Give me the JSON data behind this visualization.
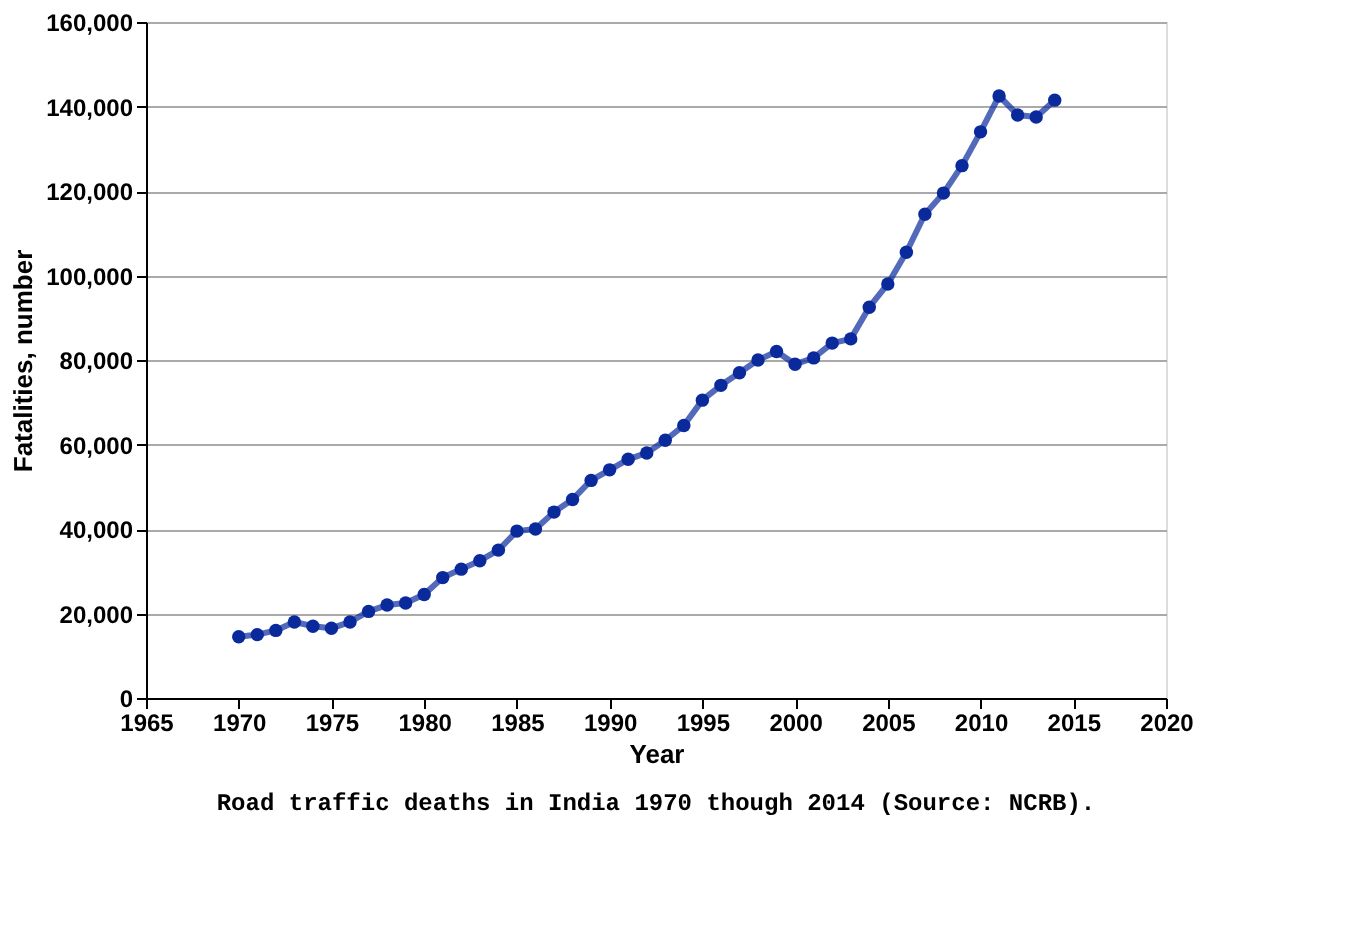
{
  "chart_data": {
    "type": "line",
    "xlabel": "Year",
    "ylabel": "Fatalities, number",
    "annotations": [
      "Road traffic deaths in India 1970 though 2014 (Source: NCRB)."
    ],
    "x": [
      1970,
      1971,
      1972,
      1973,
      1974,
      1975,
      1976,
      1977,
      1978,
      1979,
      1980,
      1981,
      1982,
      1983,
      1984,
      1985,
      1986,
      1987,
      1988,
      1989,
      1990,
      1991,
      1992,
      1993,
      1994,
      1995,
      1996,
      1997,
      1998,
      1999,
      2000,
      2001,
      2002,
      2003,
      2004,
      2005,
      2006,
      2007,
      2008,
      2009,
      2010,
      2011,
      2012,
      2013,
      2014
    ],
    "series": [
      {
        "color": "#0a2a9c",
        "values": [
          14500,
          15000,
          16000,
          18000,
          17000,
          16500,
          18000,
          20500,
          22000,
          22500,
          24500,
          28500,
          30500,
          32500,
          35000,
          39500,
          40000,
          44000,
          47000,
          51500,
          54000,
          56500,
          58000,
          61000,
          64500,
          70500,
          74000,
          77000,
          80000,
          82000,
          79000,
          80500,
          84000,
          85000,
          92500,
          98000,
          105500,
          114500,
          119500,
          126000,
          134000,
          142500,
          138000,
          137500,
          141500
        ]
      }
    ],
    "xlim": [
      1965,
      2020
    ],
    "xticks": [
      1965,
      1970,
      1975,
      1980,
      1985,
      1990,
      1995,
      2000,
      2005,
      2010,
      2015,
      2020
    ],
    "ylim": [
      0,
      160000
    ],
    "yticks": [
      {
        "value": 0,
        "label": "0"
      },
      {
        "value": 20000,
        "label": "20,000"
      },
      {
        "value": 40000,
        "label": "40,000"
      },
      {
        "value": 60000,
        "label": "60,000"
      },
      {
        "value": 80000,
        "label": "80,000"
      },
      {
        "value": 100000,
        "label": "100,000"
      },
      {
        "value": 120000,
        "label": "120,000"
      },
      {
        "value": 140000,
        "label": "140,000"
      },
      {
        "value": 160000,
        "label": "160,000"
      }
    ],
    "grid": "y",
    "marker": "circle",
    "line_style": "solid",
    "legend": false
  }
}
